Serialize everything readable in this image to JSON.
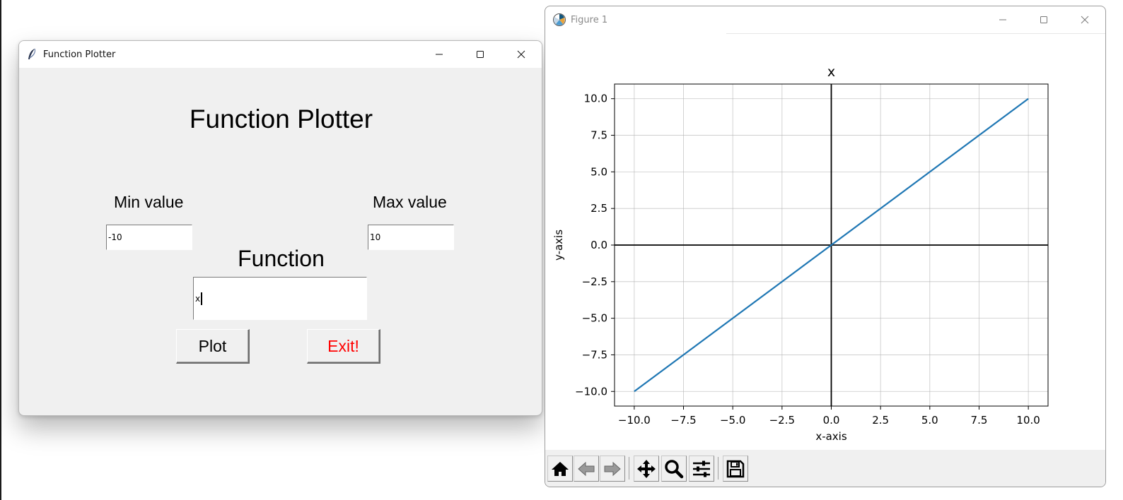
{
  "tk_window": {
    "title": "Function Plotter",
    "icon": "feather-icon",
    "heading": "Function Plotter",
    "min_label": "Min value",
    "min_value": "-10",
    "max_label": "Max value",
    "max_value": "10",
    "function_label": "Function",
    "function_value": "x",
    "plot_button": "Plot",
    "exit_button": "Exit!",
    "exit_color": "#ff0000"
  },
  "figure_window": {
    "title": "Figure 1",
    "icon": "matplotlib-icon",
    "toolbar": [
      "home-icon",
      "back-arrow-icon",
      "forward-arrow-icon",
      "pan-icon",
      "zoom-icon",
      "configure-subplots-icon",
      "save-icon"
    ]
  },
  "chart_data": {
    "type": "line",
    "title": "x",
    "xlabel": "x-axis",
    "ylabel": "y-axis",
    "xlim": [
      -11,
      11
    ],
    "ylim": [
      -11,
      11
    ],
    "xticks": [
      "−10.0",
      "−7.5",
      "−5.0",
      "−2.5",
      "0.0",
      "2.5",
      "5.0",
      "7.5",
      "10.0"
    ],
    "yticks": [
      "10.0",
      "7.5",
      "5.0",
      "2.5",
      "0.0",
      "−2.5",
      "−5.0",
      "−7.5",
      "−10.0"
    ],
    "grid": true,
    "axis_lines_at_zero": true,
    "series": [
      {
        "x": [
          -10,
          10
        ],
        "y": [
          -10,
          10
        ],
        "color": "#1f77b4"
      }
    ]
  }
}
